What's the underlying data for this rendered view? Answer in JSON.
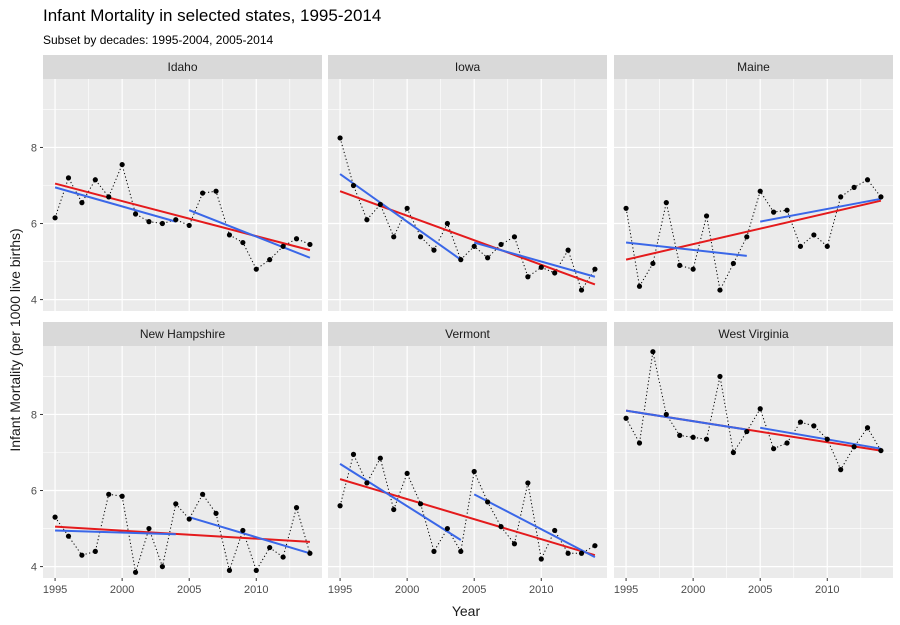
{
  "title": "Infant Mortality in selected states, 1995-2014",
  "subtitle": "Subset by decades: 1995-2004, 2005-2014",
  "xlabel": "Year",
  "ylabel": "Infant Mortality (per 1000 live births)",
  "colors": {
    "panel_bg": "#ebebeb",
    "strip_bg": "#d9d9d9",
    "grid": "#ffffff",
    "points": "#000000",
    "overall_fit": "#e41a1c",
    "decade_fit": "#3a67e8",
    "text": "#1a1a1a",
    "tick_text": "#4d4d4d"
  },
  "chart_data": {
    "type": "scatter",
    "facets": [
      "Idaho",
      "Iowa",
      "Maine",
      "New Hampshire",
      "Vermont",
      "West Virginia"
    ],
    "layout": "2 rows x 3 columns",
    "x_ticks": [
      1995,
      2000,
      2005,
      2010
    ],
    "y_ticks": [
      4,
      6,
      8
    ],
    "xlim": [
      1994.1,
      2014.9
    ],
    "ylim": [
      3.7,
      9.8
    ],
    "grid": true,
    "point_series_style": "points joined by dotted line",
    "panels": [
      {
        "name": "Idaho",
        "x": [
          1995,
          1996,
          1997,
          1998,
          1999,
          2000,
          2001,
          2002,
          2003,
          2004,
          2005,
          2006,
          2007,
          2008,
          2009,
          2010,
          2011,
          2012,
          2013,
          2014
        ],
        "y": [
          6.15,
          7.2,
          6.55,
          7.15,
          6.7,
          7.55,
          6.25,
          6.05,
          6.0,
          6.1,
          5.95,
          6.8,
          6.85,
          5.7,
          5.5,
          4.8,
          5.05,
          5.4,
          5.6,
          5.45
        ],
        "overall_fit": [
          [
            1995,
            7.05
          ],
          [
            2014,
            5.3
          ]
        ],
        "decade_fits": [
          [
            [
              1995,
              6.95
            ],
            [
              2004,
              6.05
            ]
          ],
          [
            [
              2005,
              6.35
            ],
            [
              2014,
              5.1
            ]
          ]
        ]
      },
      {
        "name": "Iowa",
        "x": [
          1995,
          1996,
          1997,
          1998,
          1999,
          2000,
          2001,
          2002,
          2003,
          2004,
          2005,
          2006,
          2007,
          2008,
          2009,
          2010,
          2011,
          2012,
          2013,
          2014
        ],
        "y": [
          8.25,
          7.0,
          6.1,
          6.5,
          5.65,
          6.4,
          5.65,
          5.3,
          6.0,
          5.05,
          5.4,
          5.1,
          5.45,
          5.65,
          4.6,
          4.85,
          4.7,
          5.3,
          4.25,
          4.8
        ],
        "overall_fit": [
          [
            1995,
            6.85
          ],
          [
            2014,
            4.4
          ]
        ],
        "decade_fits": [
          [
            [
              1995,
              7.3
            ],
            [
              2004,
              5.05
            ]
          ],
          [
            [
              2005,
              5.5
            ],
            [
              2014,
              4.6
            ]
          ]
        ]
      },
      {
        "name": "Maine",
        "x": [
          1995,
          1996,
          1997,
          1998,
          1999,
          2000,
          2001,
          2002,
          2003,
          2004,
          2005,
          2006,
          2007,
          2008,
          2009,
          2010,
          2011,
          2012,
          2013,
          2014
        ],
        "y": [
          6.4,
          4.35,
          4.95,
          6.55,
          4.9,
          4.8,
          6.2,
          4.25,
          4.95,
          5.65,
          6.85,
          6.3,
          6.35,
          5.4,
          5.7,
          5.4,
          6.7,
          6.95,
          7.15,
          6.7
        ],
        "overall_fit": [
          [
            1995,
            5.05
          ],
          [
            2014,
            6.6
          ]
        ],
        "decade_fits": [
          [
            [
              1995,
              5.5
            ],
            [
              2004,
              5.15
            ]
          ],
          [
            [
              2005,
              6.05
            ],
            [
              2014,
              6.65
            ]
          ]
        ]
      },
      {
        "name": "New Hampshire",
        "x": [
          1995,
          1996,
          1997,
          1998,
          1999,
          2000,
          2001,
          2002,
          2003,
          2004,
          2005,
          2006,
          2007,
          2008,
          2009,
          2010,
          2011,
          2012,
          2013,
          2014
        ],
        "y": [
          5.3,
          4.8,
          4.3,
          4.4,
          5.9,
          5.85,
          3.85,
          5.0,
          4.0,
          5.65,
          5.25,
          5.9,
          5.4,
          3.9,
          4.95,
          3.9,
          4.5,
          4.25,
          5.55,
          4.35
        ],
        "overall_fit": [
          [
            1995,
            5.05
          ],
          [
            2014,
            4.65
          ]
        ],
        "decade_fits": [
          [
            [
              1995,
              4.95
            ],
            [
              2004,
              4.85
            ]
          ],
          [
            [
              2005,
              5.3
            ],
            [
              2014,
              4.35
            ]
          ]
        ]
      },
      {
        "name": "Vermont",
        "x": [
          1995,
          1996,
          1997,
          1998,
          1999,
          2000,
          2001,
          2002,
          2003,
          2004,
          2005,
          2006,
          2007,
          2008,
          2009,
          2010,
          2011,
          2012,
          2013,
          2014
        ],
        "y": [
          5.6,
          6.95,
          6.2,
          6.85,
          5.5,
          6.45,
          5.65,
          4.4,
          5.0,
          4.4,
          6.5,
          5.7,
          5.05,
          4.6,
          6.2,
          4.2,
          4.95,
          4.35,
          4.35,
          4.55
        ],
        "overall_fit": [
          [
            1995,
            6.3
          ],
          [
            2014,
            4.3
          ]
        ],
        "decade_fits": [
          [
            [
              1995,
              6.7
            ],
            [
              2004,
              4.7
            ]
          ],
          [
            [
              2005,
              5.9
            ],
            [
              2014,
              4.25
            ]
          ]
        ]
      },
      {
        "name": "West Virginia",
        "x": [
          1995,
          1996,
          1997,
          1998,
          1999,
          2000,
          2001,
          2002,
          2003,
          2004,
          2005,
          2006,
          2007,
          2008,
          2009,
          2010,
          2011,
          2012,
          2013,
          2014
        ],
        "y": [
          7.9,
          7.25,
          9.65,
          8.0,
          7.45,
          7.4,
          7.35,
          9.0,
          7.0,
          7.55,
          8.15,
          7.1,
          7.25,
          7.8,
          7.7,
          7.35,
          6.55,
          7.15,
          7.65,
          7.05
        ],
        "overall_fit": [
          [
            1995,
            8.1
          ],
          [
            2014,
            7.05
          ]
        ],
        "decade_fits": [
          [
            [
              1995,
              8.1
            ],
            [
              2004,
              7.6
            ]
          ],
          [
            [
              2005,
              7.65
            ],
            [
              2014,
              7.1
            ]
          ]
        ]
      }
    ]
  }
}
